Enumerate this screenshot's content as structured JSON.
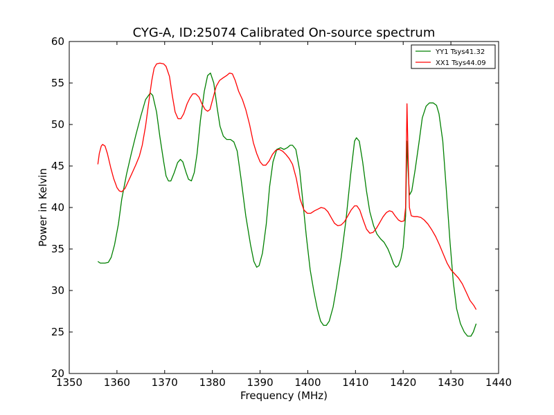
{
  "chart_data": {
    "type": "line",
    "title": "CYG-A, ID:25074 Calibrated On-source spectrum",
    "xlabel": "Frequency (MHz)",
    "ylabel": "Power in Kelvin",
    "xlim": [
      1350,
      1440
    ],
    "ylim": [
      20,
      60
    ],
    "xticks": [
      1350,
      1360,
      1370,
      1380,
      1390,
      1400,
      1410,
      1420,
      1430,
      1440
    ],
    "yticks": [
      20,
      25,
      30,
      35,
      40,
      45,
      50,
      55,
      60
    ],
    "grid": false,
    "legend_position": "top-right",
    "series": [
      {
        "name": "YY1 Tsys41.32",
        "color": "#008000",
        "points": [
          [
            1356.0,
            33.5
          ],
          [
            1356.5,
            33.3
          ],
          [
            1357.5,
            33.3
          ],
          [
            1358.2,
            33.4
          ],
          [
            1358.8,
            34.0
          ],
          [
            1359.5,
            35.5
          ],
          [
            1360.3,
            38.0
          ],
          [
            1361.0,
            41.0
          ],
          [
            1362.0,
            44.0
          ],
          [
            1363.0,
            46.5
          ],
          [
            1364.0,
            48.8
          ],
          [
            1365.0,
            51.0
          ],
          [
            1366.0,
            53.0
          ],
          [
            1367.0,
            53.8
          ],
          [
            1367.5,
            53.5
          ],
          [
            1368.3,
            51.5
          ],
          [
            1369.0,
            48.5
          ],
          [
            1369.8,
            45.5
          ],
          [
            1370.3,
            43.8
          ],
          [
            1370.8,
            43.2
          ],
          [
            1371.3,
            43.2
          ],
          [
            1372.0,
            44.2
          ],
          [
            1372.7,
            45.4
          ],
          [
            1373.3,
            45.8
          ],
          [
            1373.8,
            45.5
          ],
          [
            1374.5,
            44.2
          ],
          [
            1375.0,
            43.4
          ],
          [
            1375.6,
            43.2
          ],
          [
            1376.2,
            44.2
          ],
          [
            1376.8,
            46.5
          ],
          [
            1377.5,
            50.5
          ],
          [
            1378.3,
            54.0
          ],
          [
            1379.0,
            55.9
          ],
          [
            1379.6,
            56.2
          ],
          [
            1380.3,
            55.0
          ],
          [
            1381.0,
            52.0
          ],
          [
            1381.6,
            49.8
          ],
          [
            1382.3,
            48.6
          ],
          [
            1383.0,
            48.2
          ],
          [
            1383.8,
            48.2
          ],
          [
            1384.5,
            47.9
          ],
          [
            1385.2,
            46.8
          ],
          [
            1386.0,
            43.5
          ],
          [
            1387.0,
            39.0
          ],
          [
            1388.0,
            35.5
          ],
          [
            1388.7,
            33.5
          ],
          [
            1389.3,
            32.8
          ],
          [
            1389.8,
            33.0
          ],
          [
            1390.5,
            34.5
          ],
          [
            1391.3,
            38.0
          ],
          [
            1392.0,
            42.5
          ],
          [
            1392.7,
            45.5
          ],
          [
            1393.5,
            47.0
          ],
          [
            1394.3,
            47.2
          ],
          [
            1395.0,
            47.0
          ],
          [
            1395.7,
            47.2
          ],
          [
            1396.3,
            47.5
          ],
          [
            1396.8,
            47.5
          ],
          [
            1397.5,
            47.0
          ],
          [
            1398.3,
            44.5
          ],
          [
            1399.0,
            40.5
          ],
          [
            1399.7,
            36.5
          ],
          [
            1400.5,
            32.5
          ],
          [
            1401.3,
            29.8
          ],
          [
            1402.0,
            27.8
          ],
          [
            1402.7,
            26.3
          ],
          [
            1403.3,
            25.8
          ],
          [
            1403.9,
            25.8
          ],
          [
            1404.5,
            26.3
          ],
          [
            1405.3,
            28.0
          ],
          [
            1406.0,
            30.3
          ],
          [
            1407.0,
            34.0
          ],
          [
            1408.0,
            38.5
          ],
          [
            1409.0,
            44.0
          ],
          [
            1409.8,
            48.0
          ],
          [
            1410.2,
            48.4
          ],
          [
            1410.8,
            48.0
          ],
          [
            1411.5,
            45.5
          ],
          [
            1412.3,
            42.0
          ],
          [
            1413.0,
            39.5
          ],
          [
            1413.8,
            37.8
          ],
          [
            1414.5,
            36.8
          ],
          [
            1415.3,
            36.2
          ],
          [
            1416.0,
            35.8
          ],
          [
            1416.8,
            35.0
          ],
          [
            1417.5,
            34.0
          ],
          [
            1418.0,
            33.2
          ],
          [
            1418.5,
            32.8
          ],
          [
            1419.0,
            33.0
          ],
          [
            1419.5,
            33.8
          ],
          [
            1420.0,
            35.2
          ],
          [
            1420.5,
            39.0
          ],
          [
            1420.8,
            48.0
          ],
          [
            1421.0,
            45.0
          ],
          [
            1421.3,
            41.5
          ],
          [
            1421.8,
            42.0
          ],
          [
            1422.5,
            44.5
          ],
          [
            1423.3,
            47.8
          ],
          [
            1424.0,
            50.8
          ],
          [
            1424.8,
            52.2
          ],
          [
            1425.5,
            52.6
          ],
          [
            1426.3,
            52.6
          ],
          [
            1427.0,
            52.3
          ],
          [
            1427.5,
            51.3
          ],
          [
            1428.3,
            48.0
          ],
          [
            1429.0,
            42.5
          ],
          [
            1429.8,
            36.0
          ],
          [
            1430.5,
            31.0
          ],
          [
            1431.2,
            27.8
          ],
          [
            1432.0,
            26.0
          ],
          [
            1432.8,
            25.0
          ],
          [
            1433.5,
            24.5
          ],
          [
            1434.2,
            24.5
          ],
          [
            1434.7,
            25.0
          ],
          [
            1435.3,
            26.0
          ]
        ]
      },
      {
        "name": "XX1 Tsys44.09",
        "color": "#ff0000",
        "points": [
          [
            1356.0,
            45.2
          ],
          [
            1356.3,
            46.5
          ],
          [
            1356.7,
            47.4
          ],
          [
            1357.0,
            47.6
          ],
          [
            1357.5,
            47.4
          ],
          [
            1358.0,
            46.5
          ],
          [
            1358.7,
            44.8
          ],
          [
            1359.3,
            43.5
          ],
          [
            1360.0,
            42.4
          ],
          [
            1360.5,
            42.0
          ],
          [
            1361.0,
            41.9
          ],
          [
            1361.7,
            42.3
          ],
          [
            1362.5,
            43.3
          ],
          [
            1363.3,
            44.3
          ],
          [
            1364.0,
            45.2
          ],
          [
            1364.7,
            46.2
          ],
          [
            1365.3,
            47.5
          ],
          [
            1366.0,
            49.8
          ],
          [
            1366.7,
            52.8
          ],
          [
            1367.3,
            55.3
          ],
          [
            1367.8,
            56.8
          ],
          [
            1368.3,
            57.3
          ],
          [
            1369.0,
            57.4
          ],
          [
            1369.8,
            57.3
          ],
          [
            1370.3,
            57.0
          ],
          [
            1371.0,
            55.8
          ],
          [
            1371.6,
            53.5
          ],
          [
            1372.2,
            51.5
          ],
          [
            1372.8,
            50.7
          ],
          [
            1373.4,
            50.7
          ],
          [
            1374.0,
            51.3
          ],
          [
            1374.7,
            52.5
          ],
          [
            1375.3,
            53.2
          ],
          [
            1375.9,
            53.7
          ],
          [
            1376.5,
            53.7
          ],
          [
            1377.2,
            53.3
          ],
          [
            1377.8,
            52.5
          ],
          [
            1378.5,
            51.8
          ],
          [
            1379.0,
            51.6
          ],
          [
            1379.5,
            51.8
          ],
          [
            1380.2,
            53.3
          ],
          [
            1380.8,
            54.6
          ],
          [
            1381.5,
            55.3
          ],
          [
            1382.2,
            55.6
          ],
          [
            1383.0,
            55.9
          ],
          [
            1383.6,
            56.2
          ],
          [
            1384.2,
            56.1
          ],
          [
            1384.8,
            55.3
          ],
          [
            1385.5,
            54.0
          ],
          [
            1386.3,
            53.0
          ],
          [
            1387.0,
            51.8
          ],
          [
            1387.8,
            50.0
          ],
          [
            1388.6,
            47.8
          ],
          [
            1389.3,
            46.5
          ],
          [
            1390.0,
            45.5
          ],
          [
            1390.6,
            45.1
          ],
          [
            1391.2,
            45.1
          ],
          [
            1391.9,
            45.6
          ],
          [
            1392.6,
            46.4
          ],
          [
            1393.3,
            46.9
          ],
          [
            1394.0,
            47.0
          ],
          [
            1394.7,
            46.8
          ],
          [
            1395.4,
            46.4
          ],
          [
            1396.1,
            45.9
          ],
          [
            1396.8,
            45.2
          ],
          [
            1397.6,
            43.5
          ],
          [
            1398.4,
            41.0
          ],
          [
            1399.2,
            39.7
          ],
          [
            1399.9,
            39.3
          ],
          [
            1400.6,
            39.3
          ],
          [
            1401.4,
            39.6
          ],
          [
            1402.1,
            39.8
          ],
          [
            1402.8,
            40.0
          ],
          [
            1403.5,
            39.9
          ],
          [
            1404.2,
            39.5
          ],
          [
            1404.9,
            38.8
          ],
          [
            1405.6,
            38.1
          ],
          [
            1406.3,
            37.8
          ],
          [
            1407.0,
            37.9
          ],
          [
            1407.7,
            38.3
          ],
          [
            1408.4,
            39.0
          ],
          [
            1409.1,
            39.7
          ],
          [
            1409.8,
            40.2
          ],
          [
            1410.3,
            40.2
          ],
          [
            1410.9,
            39.7
          ],
          [
            1411.6,
            38.5
          ],
          [
            1412.3,
            37.4
          ],
          [
            1413.0,
            36.9
          ],
          [
            1413.7,
            37.0
          ],
          [
            1414.4,
            37.5
          ],
          [
            1415.1,
            38.2
          ],
          [
            1415.8,
            38.9
          ],
          [
            1416.5,
            39.4
          ],
          [
            1417.1,
            39.6
          ],
          [
            1417.7,
            39.5
          ],
          [
            1418.3,
            39.0
          ],
          [
            1419.0,
            38.5
          ],
          [
            1419.6,
            38.3
          ],
          [
            1420.2,
            38.4
          ],
          [
            1420.5,
            40.0
          ],
          [
            1420.8,
            52.5
          ],
          [
            1421.0,
            47.0
          ],
          [
            1421.3,
            40.0
          ],
          [
            1421.7,
            39.0
          ],
          [
            1422.3,
            38.9
          ],
          [
            1423.0,
            38.9
          ],
          [
            1423.7,
            38.8
          ],
          [
            1424.4,
            38.5
          ],
          [
            1425.2,
            38.0
          ],
          [
            1426.0,
            37.3
          ],
          [
            1426.8,
            36.5
          ],
          [
            1427.6,
            35.5
          ],
          [
            1428.4,
            34.4
          ],
          [
            1429.2,
            33.3
          ],
          [
            1430.0,
            32.5
          ],
          [
            1430.8,
            32.0
          ],
          [
            1431.6,
            31.5
          ],
          [
            1432.4,
            30.8
          ],
          [
            1433.2,
            29.8
          ],
          [
            1434.0,
            28.8
          ],
          [
            1434.8,
            28.2
          ],
          [
            1435.3,
            27.7
          ]
        ]
      }
    ]
  }
}
